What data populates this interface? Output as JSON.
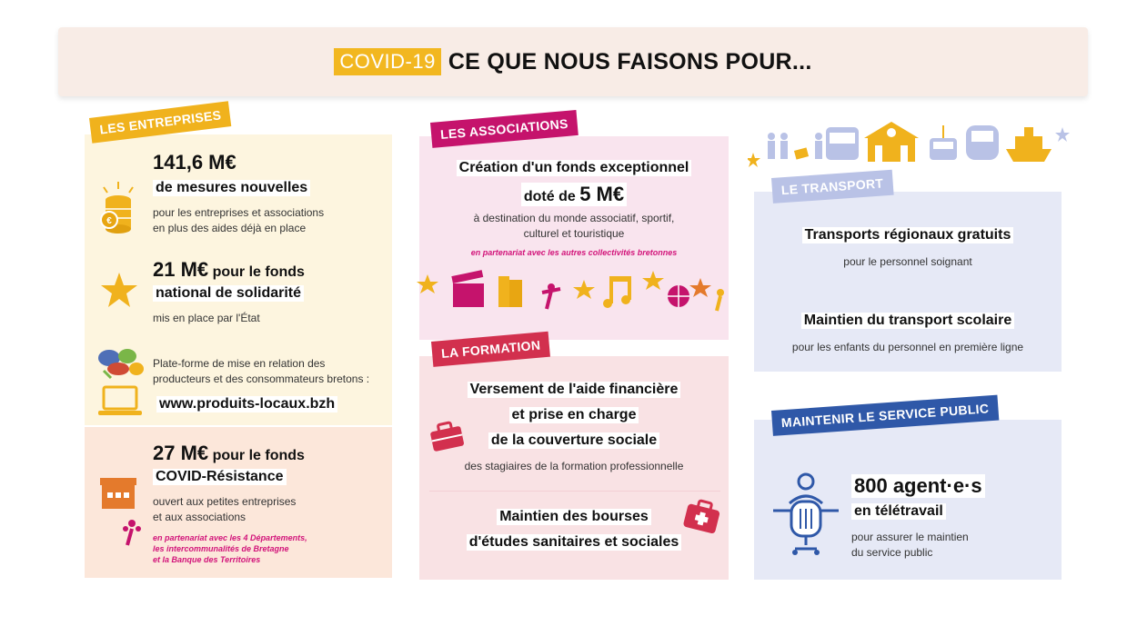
{
  "header": {
    "covid_tag": "COVID-19",
    "title": "CE QUE NOUS FAISONS POUR..."
  },
  "entreprises": {
    "tag": "LES ENTREPRISES",
    "m1_amount": "141,6 M€",
    "m1_line": "de mesures nouvelles",
    "m1_desc1": "pour les entreprises et associations",
    "m1_desc2": "en plus des aides déjà en place",
    "m2_amount": "21 M€",
    "m2_tail": " pour le fonds",
    "m2_line2": "national de solidarité",
    "m2_desc": "mis en place par l'État",
    "m3_desc1": "Plate-forme de mise en relation des",
    "m3_desc2": "producteurs et des consommateurs bretons :",
    "m3_url": "www.produits-locaux.bzh",
    "m4_amount": "27 M€",
    "m4_tail": " pour le fonds",
    "m4_line2": "COVID-Résistance",
    "m4_desc1": "ouvert aux petites entreprises",
    "m4_desc2": "et aux associations",
    "m4_partner1": "en partenariat avec les 4 Départements,",
    "m4_partner2": "les intercommunalités de Bretagne",
    "m4_partner3": "et la Banque des Territoires"
  },
  "associations": {
    "tag": "LES ASSOCIATIONS",
    "line1": "Création d'un fonds exceptionnel",
    "line2_pre": "doté de ",
    "line2_amount": "5 M€",
    "desc1": "à destination du monde associatif, sportif,",
    "desc2": "culturel et touristique",
    "partner": "en partenariat avec les autres collectivités bretonnes"
  },
  "formation": {
    "tag": "LA FORMATION",
    "line1": "Versement de l'aide financière",
    "line2": "et prise en charge",
    "line3": "de la couverture sociale",
    "desc": "des stagiaires de la formation professionnelle",
    "line4": "Maintien des bourses",
    "line5": "d'études sanitaires et sociales"
  },
  "transport": {
    "tag": "LE TRANSPORT",
    "t1": "Transports régionaux gratuits",
    "t1_desc": "pour le personnel soignant",
    "t2": "Maintien du transport scolaire",
    "t2_desc": "pour les enfants du personnel en première ligne"
  },
  "service": {
    "tag": "MAINTENIR LE SERVICE PUBLIC",
    "amount": "800 agent·e·s",
    "line2": "en télétravail",
    "desc1": "pour assurer le maintien",
    "desc2": "du service public"
  },
  "colors": {
    "yellow": "#f2b720",
    "magenta": "#c5136c",
    "red": "#d2304e",
    "blue": "#2f58a8",
    "lightblue": "#b9c2e6"
  }
}
